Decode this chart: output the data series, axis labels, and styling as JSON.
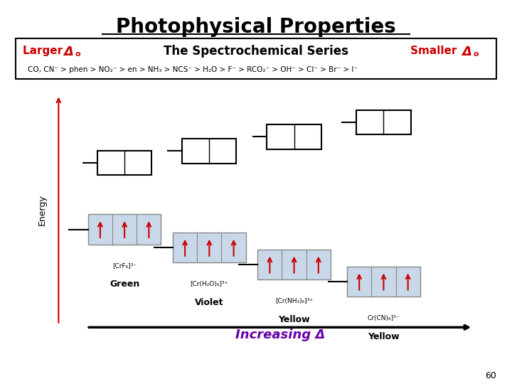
{
  "title": "Photophysical Properties",
  "header_box_text": "The Spectrochemical Series",
  "series_text": "CO, CN⁻ > phen > NO₂⁻ > en > NH₃ > NCS⁻ > H₂O > F⁻ > RCO₂⁻ > OH⁻ > Cl⁻ > Br⁻ > I⁻",
  "increasing_label": "Increasing Δ",
  "page_number": "60",
  "compounds": [
    {
      "formula": "[CrF₆]³⁻",
      "color_label": "Green"
    },
    {
      "formula": "[Cr(H₂O)₆]³⁺",
      "color_label": "Violet"
    },
    {
      "formula": "[Cr(NH₃)₆]³⁺",
      "color_label": "Yellow"
    },
    {
      "formula": "Cr(CN)₆]³⁻",
      "color_label": "Yellow"
    }
  ],
  "box_color": "#c8d8e8",
  "arrow_color": "#cc0000",
  "larger_color": "#cc0000",
  "smaller_color": "#cc0000",
  "increasing_color": "#6600aa",
  "title_color": "#000000",
  "background_color": "#ffffff"
}
